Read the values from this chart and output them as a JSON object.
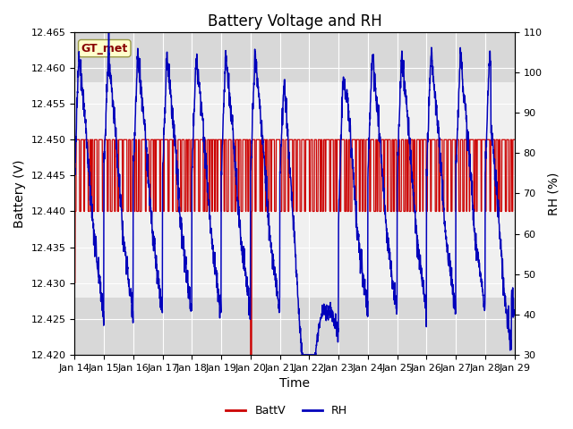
{
  "title": "Battery Voltage and RH",
  "xlabel": "Time",
  "ylabel_left": "Battery (V)",
  "ylabel_right": "RH (%)",
  "ylim_left": [
    12.42,
    12.465
  ],
  "ylim_right": [
    30,
    110
  ],
  "yticks_left": [
    12.42,
    12.425,
    12.43,
    12.435,
    12.44,
    12.445,
    12.45,
    12.455,
    12.46,
    12.465
  ],
  "yticks_right": [
    30,
    40,
    50,
    60,
    70,
    80,
    90,
    100,
    110
  ],
  "xticklabels": [
    "Jan 14",
    "Jan 15",
    "Jan 16",
    "Jan 17",
    "Jan 18",
    "Jan 19",
    "Jan 20",
    "Jan 21",
    "Jan 22",
    "Jan 23",
    "Jan 24",
    "Jan 25",
    "Jan 26",
    "Jan 27",
    "Jan 28",
    "Jan 29"
  ],
  "legend_label_batt": "BattV",
  "legend_label_rh": "RH",
  "batt_color": "#cc0000",
  "rh_color": "#0000bb",
  "bg_color": "#ffffff",
  "inner_bg_color": "#f0f0f0",
  "gray_band_color": "#d8d8d8",
  "annotation_text": "GT_met",
  "annotation_color": "#880000",
  "annotation_bg": "#ffffcc",
  "annotation_edge": "#999944",
  "grid_color": "#ffffff",
  "title_fontsize": 12,
  "axis_label_fontsize": 10,
  "tick_fontsize": 8,
  "legend_fontsize": 9
}
